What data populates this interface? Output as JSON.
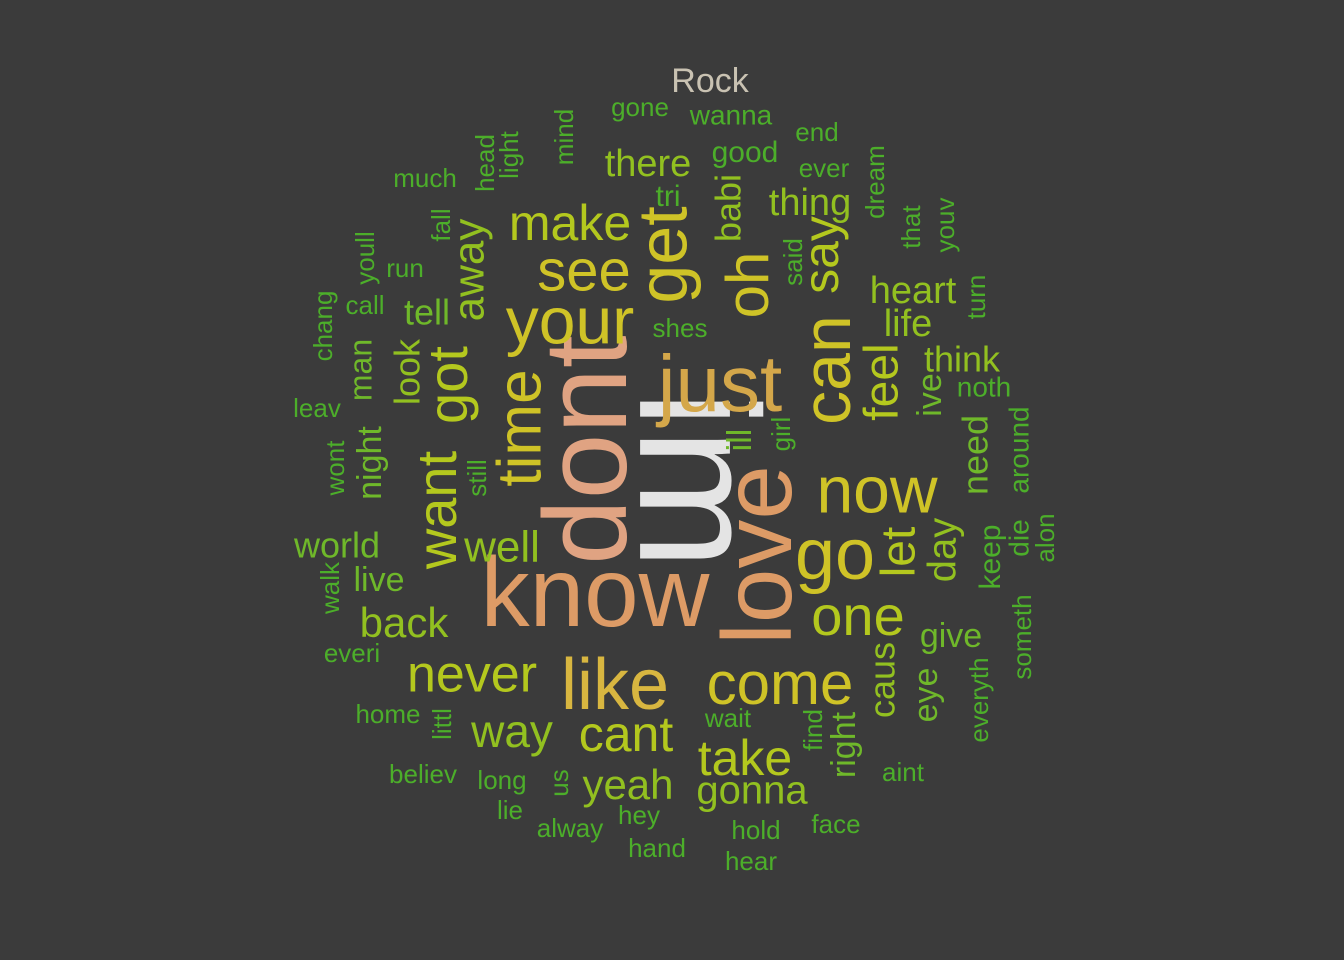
{
  "title": "Rock",
  "colors": {
    "background": "#3b3b3b",
    "title": "#c9c2b2",
    "tier1": "#e4e4e4",
    "tier2": "#e0a382",
    "tier3": "#dd9b66",
    "tier4": "#d4a74a",
    "tier5": "#d8b640",
    "tier6": "#cfc327",
    "tier7": "#b4c81e",
    "tier8": "#92c020",
    "tier9": "#6fb82a",
    "tier10": "#4cae2a"
  },
  "words": [
    {
      "text": "im",
      "weight": 10,
      "color": "tier1"
    },
    {
      "text": "know",
      "weight": 9,
      "color": "tier3"
    },
    {
      "text": "dont",
      "weight": 9,
      "color": "tier2"
    },
    {
      "text": "love",
      "weight": 8,
      "color": "tier3"
    },
    {
      "text": "just",
      "weight": 8,
      "color": "tier4"
    },
    {
      "text": "like",
      "weight": 7,
      "color": "tier5"
    },
    {
      "text": "get",
      "weight": 7,
      "color": "tier6"
    },
    {
      "text": "can",
      "weight": 7,
      "color": "tier6"
    },
    {
      "text": "go",
      "weight": 7,
      "color": "tier6"
    },
    {
      "text": "now",
      "weight": 7,
      "color": "tier6"
    },
    {
      "text": "your",
      "weight": 7,
      "color": "tier6"
    },
    {
      "text": "time",
      "weight": 6,
      "color": "tier6"
    },
    {
      "text": "come",
      "weight": 6,
      "color": "tier6"
    },
    {
      "text": "see",
      "weight": 6,
      "color": "tier6"
    },
    {
      "text": "oh",
      "weight": 6,
      "color": "tier6"
    },
    {
      "text": "one",
      "weight": 6,
      "color": "tier7"
    },
    {
      "text": "want",
      "weight": 6,
      "color": "tier7"
    },
    {
      "text": "got",
      "weight": 6,
      "color": "tier7"
    },
    {
      "text": "say",
      "weight": 5,
      "color": "tier7"
    },
    {
      "text": "never",
      "weight": 5,
      "color": "tier7"
    },
    {
      "text": "make",
      "weight": 5,
      "color": "tier7"
    },
    {
      "text": "cant",
      "weight": 5,
      "color": "tier7"
    },
    {
      "text": "take",
      "weight": 5,
      "color": "tier7"
    },
    {
      "text": "feel",
      "weight": 5,
      "color": "tier7"
    },
    {
      "text": "let",
      "weight": 5,
      "color": "tier7"
    },
    {
      "text": "way",
      "weight": 5,
      "color": "tier8"
    },
    {
      "text": "well",
      "weight": 5,
      "color": "tier8"
    },
    {
      "text": "away",
      "weight": 5,
      "color": "tier8"
    },
    {
      "text": "yeah",
      "weight": 4,
      "color": "tier8"
    },
    {
      "text": "gonna",
      "weight": 4,
      "color": "tier8"
    },
    {
      "text": "back",
      "weight": 4,
      "color": "tier8"
    },
    {
      "text": "day",
      "weight": 4,
      "color": "tier8"
    },
    {
      "text": "heart",
      "weight": 4,
      "color": "tier8"
    },
    {
      "text": "thing",
      "weight": 4,
      "color": "tier8"
    },
    {
      "text": "there",
      "weight": 4,
      "color": "tier8"
    },
    {
      "text": "life",
      "weight": 4,
      "color": "tier8"
    },
    {
      "text": "think",
      "weight": 4,
      "color": "tier8"
    },
    {
      "text": "look",
      "weight": 4,
      "color": "tier8"
    },
    {
      "text": "caus",
      "weight": 4,
      "color": "tier8"
    },
    {
      "text": "babi",
      "weight": 4,
      "color": "tier8"
    },
    {
      "text": "need",
      "weight": 3,
      "color": "tier9"
    },
    {
      "text": "ive",
      "weight": 3,
      "color": "tier9"
    },
    {
      "text": "ill",
      "weight": 3,
      "color": "tier9"
    },
    {
      "text": "tell",
      "weight": 3,
      "color": "tier9"
    },
    {
      "text": "night",
      "weight": 3,
      "color": "tier9"
    },
    {
      "text": "world",
      "weight": 3,
      "color": "tier9"
    },
    {
      "text": "right",
      "weight": 3,
      "color": "tier9"
    },
    {
      "text": "give",
      "weight": 3,
      "color": "tier9"
    },
    {
      "text": "eye",
      "weight": 3,
      "color": "tier9"
    },
    {
      "text": "live",
      "weight": 3,
      "color": "tier9"
    },
    {
      "text": "good",
      "weight": 2,
      "color": "tier10"
    },
    {
      "text": "man",
      "weight": 3,
      "color": "tier9"
    },
    {
      "text": "keep",
      "weight": 2,
      "color": "tier10"
    },
    {
      "text": "tri",
      "weight": 2,
      "color": "tier10"
    },
    {
      "text": "noth",
      "weight": 2,
      "color": "tier10"
    },
    {
      "text": "around",
      "weight": 2,
      "color": "tier10"
    },
    {
      "text": "die",
      "weight": 2,
      "color": "tier10"
    },
    {
      "text": "wanna",
      "weight": 2,
      "color": "tier10"
    },
    {
      "text": "gone",
      "weight": 2,
      "color": "tier10"
    },
    {
      "text": "mind",
      "weight": 2,
      "color": "tier10"
    },
    {
      "text": "light",
      "weight": 2,
      "color": "tier10"
    },
    {
      "text": "head",
      "weight": 2,
      "color": "tier10"
    },
    {
      "text": "much",
      "weight": 2,
      "color": "tier10"
    },
    {
      "text": "end",
      "weight": 2,
      "color": "tier10"
    },
    {
      "text": "ever",
      "weight": 2,
      "color": "tier10"
    },
    {
      "text": "dream",
      "weight": 2,
      "color": "tier10"
    },
    {
      "text": "that",
      "weight": 2,
      "color": "tier10"
    },
    {
      "text": "youv",
      "weight": 2,
      "color": "tier10"
    },
    {
      "text": "turn",
      "weight": 2,
      "color": "tier10"
    },
    {
      "text": "said",
      "weight": 2,
      "color": "tier10"
    },
    {
      "text": "fall",
      "weight": 2,
      "color": "tier10"
    },
    {
      "text": "run",
      "weight": 2,
      "color": "tier10"
    },
    {
      "text": "youll",
      "weight": 2,
      "color": "tier10"
    },
    {
      "text": "call",
      "weight": 2,
      "color": "tier10"
    },
    {
      "text": "chang",
      "weight": 2,
      "color": "tier10"
    },
    {
      "text": "leav",
      "weight": 2,
      "color": "tier10"
    },
    {
      "text": "shes",
      "weight": 2,
      "color": "tier10"
    },
    {
      "text": "girl",
      "weight": 2,
      "color": "tier10"
    },
    {
      "text": "still",
      "weight": 2,
      "color": "tier10"
    },
    {
      "text": "wont",
      "weight": 2,
      "color": "tier10"
    },
    {
      "text": "walk",
      "weight": 2,
      "color": "tier10"
    },
    {
      "text": "everi",
      "weight": 2,
      "color": "tier10"
    },
    {
      "text": "home",
      "weight": 2,
      "color": "tier10"
    },
    {
      "text": "littl",
      "weight": 2,
      "color": "tier10"
    },
    {
      "text": "believ",
      "weight": 2,
      "color": "tier10"
    },
    {
      "text": "long",
      "weight": 2,
      "color": "tier10"
    },
    {
      "text": "us",
      "weight": 2,
      "color": "tier10"
    },
    {
      "text": "lie",
      "weight": 2,
      "color": "tier10"
    },
    {
      "text": "alway",
      "weight": 2,
      "color": "tier10"
    },
    {
      "text": "hey",
      "weight": 2,
      "color": "tier10"
    },
    {
      "text": "hand",
      "weight": 2,
      "color": "tier10"
    },
    {
      "text": "wait",
      "weight": 2,
      "color": "tier10"
    },
    {
      "text": "find",
      "weight": 2,
      "color": "tier10"
    },
    {
      "text": "hold",
      "weight": 2,
      "color": "tier10"
    },
    {
      "text": "hear",
      "weight": 2,
      "color": "tier10"
    },
    {
      "text": "face",
      "weight": 2,
      "color": "tier10"
    },
    {
      "text": "aint",
      "weight": 2,
      "color": "tier10"
    },
    {
      "text": "everyth",
      "weight": 2,
      "color": "tier10"
    },
    {
      "text": "someth",
      "weight": 2,
      "color": "tier10"
    },
    {
      "text": "alon",
      "weight": 2,
      "color": "tier10"
    }
  ]
}
